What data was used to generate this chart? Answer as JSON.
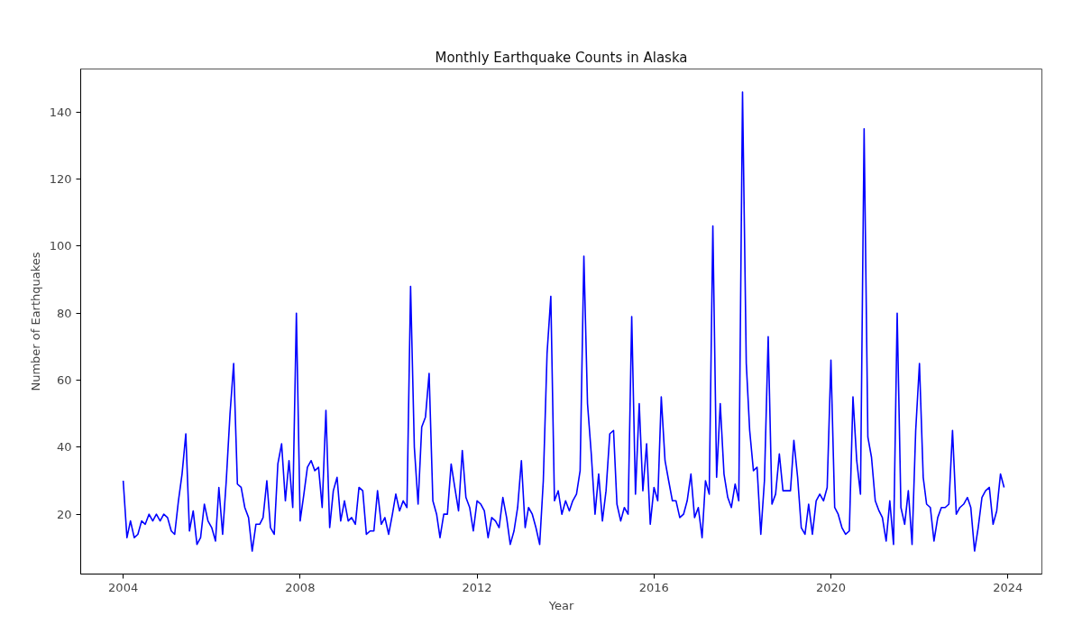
{
  "chart_data": {
    "type": "line",
    "title": "Monthly Earthquake Counts in Alaska",
    "xlabel": "Year",
    "ylabel": "Number of Earthquakes",
    "x": [
      "2004-01",
      "2004-02",
      "2004-03",
      "2004-04",
      "2004-05",
      "2004-06",
      "2004-07",
      "2004-08",
      "2004-09",
      "2004-10",
      "2004-11",
      "2004-12",
      "2005-01",
      "2005-02",
      "2005-03",
      "2005-04",
      "2005-05",
      "2005-06",
      "2005-07",
      "2005-08",
      "2005-09",
      "2005-10",
      "2005-11",
      "2005-12",
      "2006-01",
      "2006-02",
      "2006-03",
      "2006-04",
      "2006-05",
      "2006-06",
      "2006-07",
      "2006-08",
      "2006-09",
      "2006-10",
      "2006-11",
      "2006-12",
      "2007-01",
      "2007-02",
      "2007-03",
      "2007-04",
      "2007-05",
      "2007-06",
      "2007-07",
      "2007-08",
      "2007-09",
      "2007-10",
      "2007-11",
      "2007-12",
      "2008-01",
      "2008-02",
      "2008-03",
      "2008-04",
      "2008-05",
      "2008-06",
      "2008-07",
      "2008-08",
      "2008-09",
      "2008-10",
      "2008-11",
      "2008-12",
      "2009-01",
      "2009-02",
      "2009-03",
      "2009-04",
      "2009-05",
      "2009-06",
      "2009-07",
      "2009-08",
      "2009-09",
      "2009-10",
      "2009-11",
      "2009-12",
      "2010-01",
      "2010-02",
      "2010-03",
      "2010-04",
      "2010-05",
      "2010-06",
      "2010-07",
      "2010-08",
      "2010-09",
      "2010-10",
      "2010-11",
      "2010-12",
      "2011-01",
      "2011-02",
      "2011-03",
      "2011-04",
      "2011-05",
      "2011-06",
      "2011-07",
      "2011-08",
      "2011-09",
      "2011-10",
      "2011-11",
      "2011-12",
      "2012-01",
      "2012-02",
      "2012-03",
      "2012-04",
      "2012-05",
      "2012-06",
      "2012-07",
      "2012-08",
      "2012-09",
      "2012-10",
      "2012-11",
      "2012-12",
      "2013-01",
      "2013-02",
      "2013-03",
      "2013-04",
      "2013-05",
      "2013-06",
      "2013-07",
      "2013-08",
      "2013-09",
      "2013-10",
      "2013-11",
      "2013-12",
      "2014-01",
      "2014-02",
      "2014-03",
      "2014-04",
      "2014-05",
      "2014-06",
      "2014-07",
      "2014-08",
      "2014-09",
      "2014-10",
      "2014-11",
      "2014-12",
      "2015-01",
      "2015-02",
      "2015-03",
      "2015-04",
      "2015-05",
      "2015-06",
      "2015-07",
      "2015-08",
      "2015-09",
      "2015-10",
      "2015-11",
      "2015-12",
      "2016-01",
      "2016-02",
      "2016-03",
      "2016-04",
      "2016-05",
      "2016-06",
      "2016-07",
      "2016-08",
      "2016-09",
      "2016-10",
      "2016-11",
      "2016-12",
      "2017-01",
      "2017-02",
      "2017-03",
      "2017-04",
      "2017-05",
      "2017-06",
      "2017-07",
      "2017-08",
      "2017-09",
      "2017-10",
      "2017-11",
      "2017-12",
      "2018-01",
      "2018-02",
      "2018-03",
      "2018-04",
      "2018-05",
      "2018-06",
      "2018-07",
      "2018-08",
      "2018-09",
      "2018-10",
      "2018-11",
      "2018-12",
      "2019-01",
      "2019-02",
      "2019-03",
      "2019-04",
      "2019-05",
      "2019-06",
      "2019-07",
      "2019-08",
      "2019-09",
      "2019-10",
      "2019-11",
      "2019-12",
      "2020-01",
      "2020-02",
      "2020-03",
      "2020-04",
      "2020-05",
      "2020-06",
      "2020-07",
      "2020-08",
      "2020-09",
      "2020-10",
      "2020-11",
      "2020-12",
      "2021-01",
      "2021-02",
      "2021-03",
      "2021-04",
      "2021-05",
      "2021-06",
      "2021-07",
      "2021-08",
      "2021-09",
      "2021-10",
      "2021-11",
      "2021-12",
      "2022-01",
      "2022-02",
      "2022-03",
      "2022-04",
      "2022-05",
      "2022-06",
      "2022-07",
      "2022-08",
      "2022-09",
      "2022-10",
      "2022-11",
      "2022-12",
      "2023-01",
      "2023-02",
      "2023-03",
      "2023-04",
      "2023-05",
      "2023-06",
      "2023-07",
      "2023-08",
      "2023-09",
      "2023-10",
      "2023-11",
      "2023-12"
    ],
    "series": [
      {
        "color": "#0000ff",
        "values": [
          30,
          13,
          18,
          13,
          14,
          18,
          17,
          20,
          18,
          20,
          18,
          20,
          19,
          15,
          14,
          24,
          32,
          44,
          15,
          21,
          11,
          13,
          23,
          18,
          16,
          12,
          28,
          14,
          30,
          50,
          65,
          29,
          28,
          22,
          19,
          9,
          17,
          17,
          19,
          30,
          16,
          14,
          35,
          41,
          24,
          36,
          22,
          80,
          18,
          26,
          34,
          36,
          33,
          34,
          22,
          51,
          16,
          27,
          31,
          18,
          24,
          18,
          19,
          17,
          28,
          27,
          14,
          15,
          15,
          27,
          17,
          19,
          14,
          20,
          26,
          21,
          24,
          22,
          88,
          40,
          23,
          46,
          49,
          62,
          24,
          20,
          13,
          20,
          20,
          35,
          28,
          21,
          39,
          25,
          22,
          15,
          24,
          23,
          21,
          13,
          19,
          18,
          16,
          25,
          19,
          11,
          15,
          22,
          36,
          16,
          22,
          20,
          16,
          11,
          30,
          68,
          85,
          24,
          27,
          20,
          24,
          21,
          24,
          26,
          33,
          97,
          53,
          38,
          20,
          32,
          18,
          27,
          44,
          45,
          23,
          18,
          22,
          20,
          79,
          26,
          53,
          27,
          41,
          17,
          28,
          24,
          55,
          36,
          30,
          24,
          24,
          19,
          20,
          24,
          32,
          19,
          22,
          13,
          30,
          26,
          106,
          31,
          53,
          32,
          25,
          22,
          29,
          24,
          146,
          65,
          45,
          33,
          34,
          14,
          30,
          73,
          23,
          26,
          38,
          27,
          27,
          27,
          42,
          31,
          16,
          14,
          23,
          14,
          24,
          26,
          24,
          28,
          66,
          22,
          20,
          16,
          14,
          15,
          55,
          36,
          26,
          135,
          43,
          37,
          24,
          21,
          19,
          12,
          24,
          11,
          80,
          22,
          17,
          27,
          11,
          45,
          65,
          31,
          23,
          22,
          12,
          19,
          22,
          22,
          23,
          45,
          20,
          22,
          23,
          25,
          22,
          9,
          16,
          25,
          27,
          28,
          17,
          21,
          32,
          28
        ]
      }
    ],
    "xlim": [
      "2003-01-15",
      "2024-10-08"
    ],
    "xticks": [
      "2004",
      "2008",
      "2012",
      "2016",
      "2020",
      "2024"
    ],
    "ylim": [
      2.15,
      152.85
    ],
    "yticks": [
      20,
      40,
      60,
      80,
      100,
      120,
      140
    ],
    "grid": false,
    "line_style": "solid"
  }
}
